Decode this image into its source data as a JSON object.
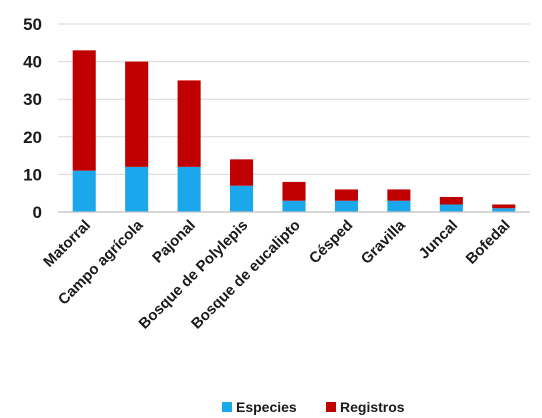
{
  "chart_data": {
    "type": "bar",
    "stacked": true,
    "categories": [
      "Matorral",
      "Campo agrícola",
      "Pajonal",
      "Bosque de Polylepis",
      "Bosque de eucalipto",
      "Césped",
      "Gravilla",
      "Juncal",
      "Bofedal"
    ],
    "series": [
      {
        "name": "Especies",
        "color": "#1aa7ec",
        "values": [
          11,
          12,
          12,
          7,
          3,
          3,
          3,
          2,
          1
        ]
      },
      {
        "name": "Registros",
        "color": "#c00000",
        "values": [
          32,
          28,
          23,
          7,
          5,
          3,
          3,
          2,
          1
        ]
      }
    ],
    "ylim": [
      0,
      50
    ],
    "yticks": [
      0,
      10,
      20,
      30,
      40,
      50
    ],
    "grid": true,
    "legend_position": "bottom-center"
  }
}
